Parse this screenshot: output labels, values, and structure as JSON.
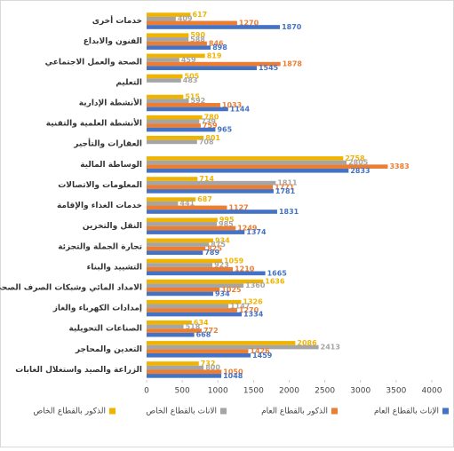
{
  "chart_data": {
    "type": "hbar",
    "categories": [
      "خدمات أخرى",
      "الفنون والابداع",
      "الصحة والعمل الاجتماعي",
      "التعليم",
      "الأنشطة الإدارية",
      "الأنشطة العلمية والتقنية",
      "العقارات والتأجير",
      "الوساطة المالية",
      "المعلومات والاتصالات",
      "خدمات الغذاء والإقامة",
      "النقل والتخزين",
      "تجارة الجملة والتجزئة",
      "التشييد والبناء",
      "الامداد المائي وشبكات الصرف الصحي",
      "إمدادات الكهرباء والغاز",
      "الصناعات التحويلية",
      "التعدين والمحاجر",
      "الزراعة والصيد واستغلال الغابات"
    ],
    "series": [
      {
        "name": "الإناث بالقطاع العام",
        "color": "#4472c4",
        "values": [
          1870,
          898,
          1545,
          null,
          1144,
          965,
          null,
          2833,
          1781,
          1831,
          1374,
          789,
          1665,
          934,
          1334,
          668,
          1459,
          1048
        ]
      },
      {
        "name": "الذكور بالقطاع العام",
        "color": "#ed7d31",
        "values": [
          1270,
          846,
          1878,
          null,
          1033,
          759,
          null,
          3383,
          1771,
          1127,
          1249,
          825,
          1210,
          1025,
          1270,
          772,
          1426,
          1050
        ]
      },
      {
        "name": "الاناث بالقطاع الخاص",
        "color": "#a5a5a5",
        "values": [
          409,
          588,
          459,
          483,
          592,
          739,
          708,
          2805,
          1811,
          441,
          985,
          875,
          923,
          1360,
          1147,
          518,
          2413,
          800
        ]
      },
      {
        "name": "الذكور بالقطاع الخاص",
        "color": "#f0b400",
        "values": [
          617,
          590,
          819,
          505,
          515,
          780,
          801,
          2758,
          714,
          687,
          995,
          934,
          1059,
          1636,
          1326,
          634,
          2086,
          732
        ]
      }
    ],
    "xlim": [
      0,
      4000
    ],
    "xticks": [
      0,
      500,
      1000,
      1500,
      2000,
      2500,
      3000,
      3500,
      4000
    ],
    "grid": false
  }
}
